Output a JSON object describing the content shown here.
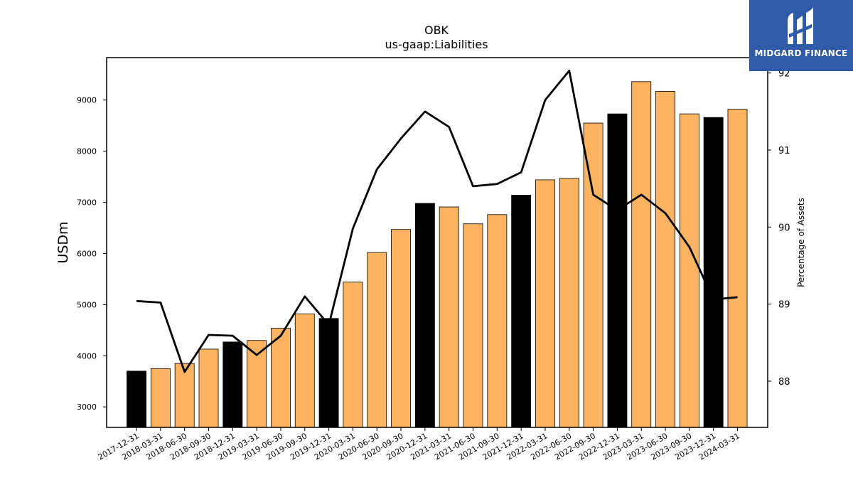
{
  "brand": {
    "name": "MIDGARD FINANCE",
    "logo_icon": "midgard-logo-icon",
    "color": "#2f5aa8"
  },
  "chart_data": {
    "type": "bar",
    "title": "OBK",
    "subtitle": "us-gaap:Liabilities",
    "ylabel": "USDm",
    "y2label": "Percentage of Assets",
    "ylim": [
      2600,
      9830
    ],
    "y2lim": [
      87.4,
      92.2
    ],
    "yticks": [
      3000,
      4000,
      5000,
      6000,
      7000,
      8000,
      9000
    ],
    "y2ticks": [
      88,
      89,
      90,
      91,
      92
    ],
    "categories": [
      "2017-12-31",
      "2018-03-31",
      "2018-06-30",
      "2018-09-30",
      "2018-12-31",
      "2019-03-31",
      "2019-06-30",
      "2019-09-30",
      "2019-12-31",
      "2020-03-31",
      "2020-06-30",
      "2020-09-30",
      "2020-12-31",
      "2021-03-31",
      "2021-06-30",
      "2021-09-30",
      "2021-12-31",
      "2022-03-31",
      "2022-06-30",
      "2022-09-30",
      "2022-12-31",
      "2023-03-31",
      "2023-06-30",
      "2023-09-30",
      "2023-12-31",
      "2024-03-31"
    ],
    "series": [
      {
        "type": "bar",
        "values": [
          3700,
          3750,
          3850,
          4130,
          4270,
          4300,
          4540,
          4820,
          4730,
          5440,
          6020,
          6470,
          6980,
          6910,
          6580,
          6760,
          7140,
          7440,
          7470,
          8550,
          8730,
          9360,
          9170,
          8730,
          8660,
          8820
        ],
        "colors": [
          "#000000",
          "#fdb462",
          "#fdb462",
          "#fdb462",
          "#000000",
          "#fdb462",
          "#fdb462",
          "#fdb462",
          "#000000",
          "#fdb462",
          "#fdb462",
          "#fdb462",
          "#000000",
          "#fdb462",
          "#fdb462",
          "#fdb462",
          "#000000",
          "#fdb462",
          "#fdb462",
          "#fdb462",
          "#000000",
          "#fdb462",
          "#fdb462",
          "#fdb462",
          "#000000",
          "#fdb462"
        ]
      },
      {
        "type": "line",
        "axis": "right",
        "color": "#000000",
        "values": [
          89.04,
          89.02,
          88.12,
          88.6,
          88.59,
          88.34,
          88.59,
          89.1,
          88.73,
          89.98,
          90.75,
          91.15,
          91.5,
          91.3,
          90.53,
          90.56,
          90.71,
          91.65,
          92.03,
          90.42,
          90.22,
          90.42,
          90.18,
          89.74,
          89.06,
          89.09
        ]
      }
    ],
    "grid": false,
    "legend": "none"
  }
}
